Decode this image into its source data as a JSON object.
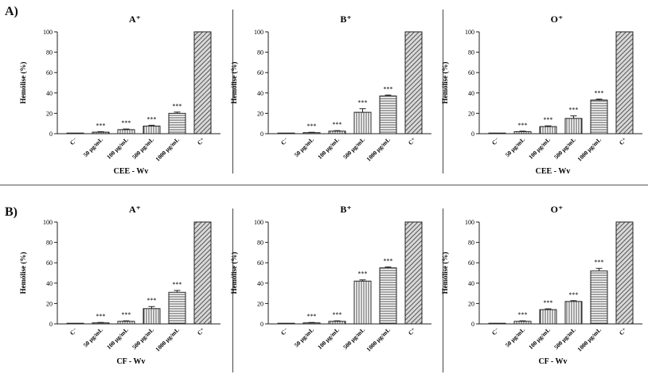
{
  "rows": [
    {
      "label": "A)",
      "group_label": "CEE - Wv"
    },
    {
      "label": "B)",
      "group_label": "CF - Wv"
    }
  ],
  "colors": {
    "bar_stroke": "#222222",
    "axis": "#222222",
    "hatch": "#333333",
    "divider": "#555555"
  },
  "chart_data": [
    {
      "type": "bar",
      "row": 0,
      "col": 0,
      "title": "A⁺",
      "ylabel": "Hemólise (%)",
      "xlabel": "CEE - Wv",
      "ylim": [
        0,
        100
      ],
      "yticks": [
        0,
        20,
        40,
        60,
        80,
        100
      ],
      "categories": [
        "C⁻",
        "50 µg/mL",
        "100 µg/mL",
        "500 µg/mL",
        "1000 µg/mL",
        "C⁺"
      ],
      "values": [
        0.5,
        1.5,
        4,
        7.5,
        20,
        100
      ],
      "errors": [
        0,
        0.5,
        0.6,
        0.8,
        1.2,
        0
      ],
      "patterns": [
        "solid",
        "vlines",
        "vlines",
        "vlines",
        "hlines",
        "diag"
      ],
      "annotations": [
        "",
        "***",
        "***",
        "***",
        "***",
        ""
      ]
    },
    {
      "type": "bar",
      "row": 0,
      "col": 1,
      "title": "B⁺",
      "ylabel": "Hemólise (%)",
      "xlabel": "",
      "ylim": [
        0,
        100
      ],
      "yticks": [
        0,
        20,
        40,
        60,
        80,
        100
      ],
      "categories": [
        "C⁻",
        "50 µg/mL",
        "100 µg/mL",
        "500 µg/mL",
        "1000 µg/mL",
        "C⁺"
      ],
      "values": [
        0,
        1,
        2.5,
        21,
        37,
        100
      ],
      "errors": [
        0,
        0.4,
        0.5,
        3.5,
        1.0,
        0
      ],
      "patterns": [
        "solid",
        "vlines",
        "vlines",
        "vlines",
        "hlines",
        "diag"
      ],
      "annotations": [
        "",
        "***",
        "***",
        "***",
        "***",
        ""
      ]
    },
    {
      "type": "bar",
      "row": 0,
      "col": 2,
      "title": "O⁺",
      "ylabel": "Hemólise (%)",
      "xlabel": "CEE - Wv",
      "ylim": [
        0,
        100
      ],
      "yticks": [
        0,
        20,
        40,
        60,
        80,
        100
      ],
      "categories": [
        "C⁻",
        "50 µg/mL",
        "100 µg/mL",
        "500 µg/mL",
        "1000 µg/mL",
        "C⁺"
      ],
      "values": [
        0,
        2,
        7,
        15,
        33,
        100
      ],
      "errors": [
        0,
        0.5,
        0.7,
        2.5,
        1.0,
        0
      ],
      "patterns": [
        "solid",
        "vlines",
        "vlines",
        "vlines",
        "hlines",
        "diag"
      ],
      "annotations": [
        "",
        "***",
        "***",
        "***",
        "***",
        ""
      ]
    },
    {
      "type": "bar",
      "row": 1,
      "col": 0,
      "title": "A⁺",
      "ylabel": "Hemólise (%)",
      "xlabel": "CF - Wv",
      "ylim": [
        0,
        100
      ],
      "yticks": [
        0,
        20,
        40,
        60,
        80,
        100
      ],
      "categories": [
        "C⁻",
        "50 µg/mL",
        "100 µg/mL",
        "500 µg/mL",
        "1000 µg/mL",
        "C⁺"
      ],
      "values": [
        0,
        1,
        2.5,
        15,
        31,
        100
      ],
      "errors": [
        0,
        0.4,
        0.5,
        2.0,
        1.8,
        0
      ],
      "patterns": [
        "solid",
        "vlines",
        "vlines",
        "vlines",
        "hlines",
        "diag"
      ],
      "annotations": [
        "",
        "***",
        "***",
        "***",
        "***",
        ""
      ]
    },
    {
      "type": "bar",
      "row": 1,
      "col": 1,
      "title": "B⁺",
      "ylabel": "Hemólise (%)",
      "xlabel": "",
      "ylim": [
        0,
        100
      ],
      "yticks": [
        0,
        20,
        40,
        60,
        80,
        100
      ],
      "categories": [
        "C⁻",
        "50 µg/mL",
        "100 µg/mL",
        "500 µg/mL",
        "1000 µg/mL",
        "C⁺"
      ],
      "values": [
        0,
        1,
        2.5,
        42,
        55,
        100
      ],
      "errors": [
        0,
        0.4,
        0.5,
        1.2,
        1.0,
        0
      ],
      "patterns": [
        "solid",
        "vlines",
        "vlines",
        "vlines",
        "hlines",
        "diag"
      ],
      "annotations": [
        "",
        "***",
        "***",
        "***",
        "***",
        ""
      ]
    },
    {
      "type": "bar",
      "row": 1,
      "col": 2,
      "title": "O⁺",
      "ylabel": "Hemólise (%)",
      "xlabel": "CF - Wv",
      "ylim": [
        0,
        100
      ],
      "yticks": [
        0,
        20,
        40,
        60,
        80,
        100
      ],
      "categories": [
        "C⁻",
        "50 µg/mL",
        "100 µg/mL",
        "500 µg/mL",
        "1000 µg/mL",
        "C⁺"
      ],
      "values": [
        0,
        2.5,
        14,
        22,
        52,
        100
      ],
      "errors": [
        0,
        0.5,
        0.8,
        0.8,
        2.5,
        0
      ],
      "patterns": [
        "solid",
        "vlines",
        "vlines",
        "vlines",
        "hlines",
        "diag"
      ],
      "annotations": [
        "",
        "***",
        "***",
        "***",
        "***",
        ""
      ]
    }
  ]
}
